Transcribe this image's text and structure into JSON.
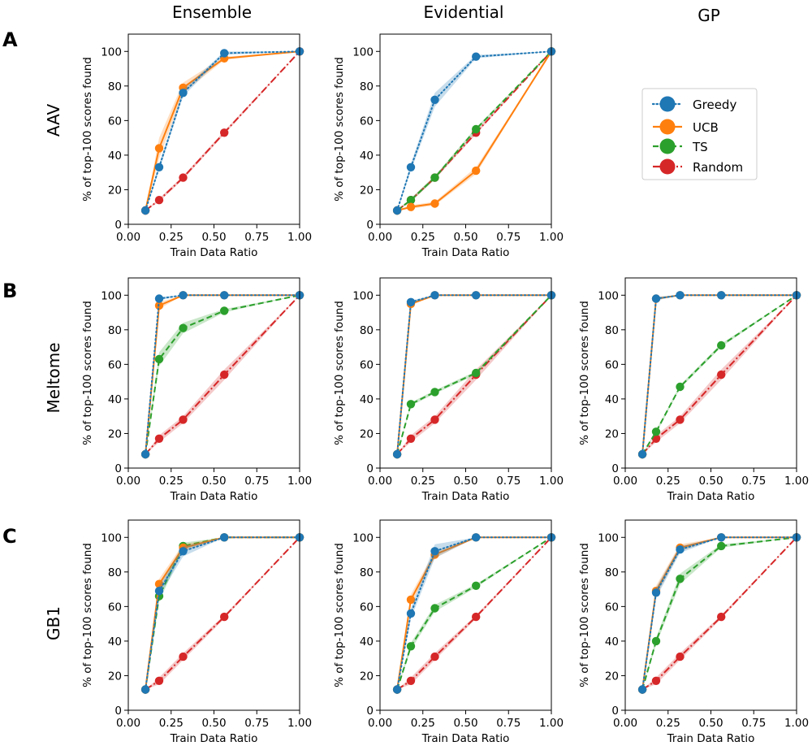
{
  "column_titles": [
    "Ensemble",
    "Evidential",
    "GP"
  ],
  "rows": [
    {
      "letter": "A",
      "label": "AAV"
    },
    {
      "letter": "B",
      "label": "Meltome"
    },
    {
      "letter": "C",
      "label": "GB1"
    }
  ],
  "legend": {
    "position": "top-right (row A, GP column)",
    "entries": [
      {
        "name": "Greedy",
        "series": "greedy"
      },
      {
        "name": "UCB",
        "series": "ucb"
      },
      {
        "name": "TS",
        "series": "ts"
      },
      {
        "name": "Random",
        "series": "random"
      }
    ]
  },
  "colors": {
    "greedy": "#1f77b4",
    "ucb": "#ff7f0e",
    "ts": "#2ca02c",
    "random": "#d62728"
  },
  "chart_data": [
    {
      "type": "line",
      "row": 0,
      "col": 0,
      "title": "Ensemble",
      "row_label": "AAV",
      "xlabel": "Train Data Ratio",
      "ylabel": "% of top-100 scores found",
      "xlim": [
        0.0,
        1.0
      ],
      "ylim": [
        0,
        110
      ],
      "xticks": [
        "0.00",
        "0.25",
        "0.50",
        "0.75",
        "1.00"
      ],
      "yticks": [
        "0",
        "20",
        "40",
        "60",
        "80",
        "100"
      ],
      "x": [
        0.1,
        0.18,
        0.32,
        0.56,
        1.0
      ],
      "series": [
        {
          "name": "Greedy",
          "key": "greedy",
          "values": [
            8,
            33,
            76,
            99,
            100
          ],
          "band": [
            0,
            2,
            2,
            1,
            0
          ]
        },
        {
          "name": "UCB",
          "key": "ucb",
          "values": [
            8,
            44,
            79,
            96,
            100
          ],
          "band": [
            0,
            6,
            3,
            1,
            0
          ]
        },
        {
          "name": "Random",
          "key": "random",
          "values": [
            8,
            14,
            27,
            53,
            100
          ],
          "band": [
            0,
            1,
            1,
            1,
            0
          ]
        }
      ]
    },
    {
      "type": "line",
      "row": 0,
      "col": 1,
      "title": "Evidential",
      "row_label": "AAV",
      "xlabel": "Train Data Ratio",
      "ylabel": "% of top-100 scores found",
      "xlim": [
        0.0,
        1.0
      ],
      "ylim": [
        0,
        110
      ],
      "xticks": [
        "0.00",
        "0.25",
        "0.50",
        "0.75",
        "1.00"
      ],
      "yticks": [
        "0",
        "20",
        "40",
        "60",
        "80",
        "100"
      ],
      "x": [
        0.1,
        0.18,
        0.32,
        0.56,
        1.0
      ],
      "series": [
        {
          "name": "Greedy",
          "key": "greedy",
          "values": [
            8,
            33,
            72,
            97,
            100
          ],
          "band": [
            0,
            2,
            4,
            1,
            0
          ]
        },
        {
          "name": "UCB",
          "key": "ucb",
          "values": [
            8,
            10,
            12,
            31,
            100
          ],
          "band": [
            0,
            1,
            1,
            2,
            0
          ]
        },
        {
          "name": "TS",
          "key": "ts",
          "values": [
            8,
            14,
            27,
            55,
            100
          ],
          "band": [
            0,
            1,
            1,
            1,
            0
          ]
        },
        {
          "name": "Random",
          "key": "random",
          "values": [
            8,
            14,
            27,
            53,
            100
          ],
          "band": [
            0,
            1,
            1,
            1,
            0
          ]
        }
      ]
    },
    {
      "type": "line",
      "row": 1,
      "col": 0,
      "title": "Ensemble",
      "row_label": "Meltome",
      "xlabel": "Train Data Ratio",
      "ylabel": "% of top-100 scores found",
      "xlim": [
        0.0,
        1.0
      ],
      "ylim": [
        0,
        110
      ],
      "xticks": [
        "0.00",
        "0.25",
        "0.50",
        "0.75",
        "1.00"
      ],
      "yticks": [
        "0",
        "20",
        "40",
        "60",
        "80",
        "100"
      ],
      "x": [
        0.1,
        0.18,
        0.32,
        0.56,
        1.0
      ],
      "series": [
        {
          "name": "Greedy",
          "key": "greedy",
          "values": [
            8,
            98,
            100,
            100,
            100
          ],
          "band": [
            0,
            1,
            0,
            0,
            0
          ]
        },
        {
          "name": "UCB",
          "key": "ucb",
          "values": [
            8,
            94,
            100,
            100,
            100
          ],
          "band": [
            0,
            2,
            0,
            0,
            0
          ]
        },
        {
          "name": "TS",
          "key": "ts",
          "values": [
            8,
            63,
            81,
            91,
            100
          ],
          "band": [
            0,
            4,
            3,
            1,
            0
          ]
        },
        {
          "name": "Random",
          "key": "random",
          "values": [
            8,
            17,
            28,
            54,
            100
          ],
          "band": [
            0,
            2,
            2,
            3,
            0
          ]
        }
      ]
    },
    {
      "type": "line",
      "row": 1,
      "col": 1,
      "title": "Evidential",
      "row_label": "Meltome",
      "xlabel": "Train Data Ratio",
      "ylabel": "% of top-100 scores found",
      "xlim": [
        0.0,
        1.0
      ],
      "ylim": [
        0,
        110
      ],
      "xticks": [
        "0.00",
        "0.25",
        "0.50",
        "0.75",
        "1.00"
      ],
      "yticks": [
        "0",
        "20",
        "40",
        "60",
        "80",
        "100"
      ],
      "x": [
        0.1,
        0.18,
        0.32,
        0.56,
        1.0
      ],
      "series": [
        {
          "name": "Greedy",
          "key": "greedy",
          "values": [
            8,
            96,
            100,
            100,
            100
          ],
          "band": [
            0,
            1,
            0,
            0,
            0
          ]
        },
        {
          "name": "UCB",
          "key": "ucb",
          "values": [
            8,
            95,
            100,
            100,
            100
          ],
          "band": [
            0,
            1,
            0,
            0,
            0
          ]
        },
        {
          "name": "TS",
          "key": "ts",
          "values": [
            8,
            37,
            44,
            55,
            100
          ],
          "band": [
            0,
            1,
            1,
            1,
            0
          ]
        },
        {
          "name": "Random",
          "key": "random",
          "values": [
            8,
            17,
            28,
            54,
            100
          ],
          "band": [
            0,
            2,
            2,
            3,
            0
          ]
        }
      ]
    },
    {
      "type": "line",
      "row": 1,
      "col": 2,
      "title": "GP",
      "row_label": "Meltome",
      "xlabel": "Train Data Ratio",
      "ylabel": "% of top-100 scores found",
      "xlim": [
        0.0,
        1.0
      ],
      "ylim": [
        0,
        110
      ],
      "xticks": [
        "0.00",
        "0.25",
        "0.50",
        "0.75",
        "1.00"
      ],
      "yticks": [
        "0",
        "20",
        "40",
        "60",
        "80",
        "100"
      ],
      "x": [
        0.1,
        0.18,
        0.32,
        0.56,
        1.0
      ],
      "series": [
        {
          "name": "Greedy",
          "key": "greedy",
          "values": [
            8,
            98,
            100,
            100,
            100
          ],
          "band": [
            0,
            1,
            0,
            0,
            0
          ]
        },
        {
          "name": "UCB",
          "key": "ucb",
          "values": [
            8,
            98,
            100,
            100,
            100
          ],
          "band": [
            0,
            1,
            0,
            0,
            0
          ]
        },
        {
          "name": "TS",
          "key": "ts",
          "values": [
            8,
            21,
            47,
            71,
            100
          ],
          "band": [
            0,
            1,
            1,
            1,
            0
          ]
        },
        {
          "name": "Random",
          "key": "random",
          "values": [
            8,
            17,
            28,
            54,
            100
          ],
          "band": [
            0,
            2,
            2,
            3,
            0
          ]
        }
      ]
    },
    {
      "type": "line",
      "row": 2,
      "col": 0,
      "title": "Ensemble",
      "row_label": "GB1",
      "xlabel": "Train Data Ratio",
      "ylabel": "% of top-100 scores found",
      "xlim": [
        0.0,
        1.0
      ],
      "ylim": [
        0,
        110
      ],
      "xticks": [
        "0.00",
        "0.25",
        "0.50",
        "0.75",
        "1.00"
      ],
      "yticks": [
        "0",
        "20",
        "40",
        "60",
        "80",
        "100"
      ],
      "x": [
        0.1,
        0.18,
        0.32,
        0.56,
        1.0
      ],
      "series": [
        {
          "name": "Greedy",
          "key": "greedy",
          "values": [
            12,
            69,
            92,
            100,
            100
          ],
          "band": [
            0,
            3,
            3,
            0,
            0
          ]
        },
        {
          "name": "UCB",
          "key": "ucb",
          "values": [
            12,
            73,
            94,
            100,
            100
          ],
          "band": [
            0,
            3,
            2,
            0,
            0
          ]
        },
        {
          "name": "TS",
          "key": "ts",
          "values": [
            12,
            66,
            95,
            100,
            100
          ],
          "band": [
            0,
            3,
            2,
            0,
            0
          ]
        },
        {
          "name": "Random",
          "key": "random",
          "values": [
            12,
            17,
            31,
            54,
            100
          ],
          "band": [
            0,
            2,
            2,
            1,
            0
          ]
        }
      ]
    },
    {
      "type": "line",
      "row": 2,
      "col": 1,
      "title": "Evidential",
      "row_label": "GB1",
      "xlabel": "Train Data Ratio",
      "ylabel": "% of top-100 scores found",
      "xlim": [
        0.0,
        1.0
      ],
      "ylim": [
        0,
        110
      ],
      "xticks": [
        "0.00",
        "0.25",
        "0.50",
        "0.75",
        "1.00"
      ],
      "yticks": [
        "0",
        "20",
        "40",
        "60",
        "80",
        "100"
      ],
      "x": [
        0.1,
        0.18,
        0.32,
        0.56,
        1.0
      ],
      "series": [
        {
          "name": "Greedy",
          "key": "greedy",
          "values": [
            12,
            56,
            92,
            100,
            100
          ],
          "band": [
            0,
            3,
            4,
            0,
            0
          ]
        },
        {
          "name": "UCB",
          "key": "ucb",
          "values": [
            12,
            64,
            90,
            100,
            100
          ],
          "band": [
            0,
            3,
            2,
            0,
            0
          ]
        },
        {
          "name": "TS",
          "key": "ts",
          "values": [
            12,
            37,
            59,
            72,
            100
          ],
          "band": [
            0,
            2,
            2,
            1,
            0
          ]
        },
        {
          "name": "Random",
          "key": "random",
          "values": [
            12,
            17,
            31,
            54,
            100
          ],
          "band": [
            0,
            2,
            2,
            1,
            0
          ]
        }
      ]
    },
    {
      "type": "line",
      "row": 2,
      "col": 2,
      "title": "GP",
      "row_label": "GB1",
      "xlabel": "Train Data Ratio",
      "ylabel": "% of top-100 scores found",
      "xlim": [
        0.0,
        1.0
      ],
      "ylim": [
        0,
        110
      ],
      "xticks": [
        "0.00",
        "0.25",
        "0.50",
        "0.75",
        "1.00"
      ],
      "yticks": [
        "0",
        "20",
        "40",
        "60",
        "80",
        "100"
      ],
      "x": [
        0.1,
        0.18,
        0.32,
        0.56,
        1.0
      ],
      "series": [
        {
          "name": "Greedy",
          "key": "greedy",
          "values": [
            12,
            68,
            93,
            100,
            100
          ],
          "band": [
            0,
            3,
            2,
            0,
            0
          ]
        },
        {
          "name": "UCB",
          "key": "ucb",
          "values": [
            12,
            69,
            94,
            100,
            100
          ],
          "band": [
            0,
            3,
            2,
            0,
            0
          ]
        },
        {
          "name": "TS",
          "key": "ts",
          "values": [
            12,
            40,
            76,
            95,
            100
          ],
          "band": [
            0,
            2,
            3,
            1,
            0
          ]
        },
        {
          "name": "Random",
          "key": "random",
          "values": [
            12,
            17,
            31,
            54,
            100
          ],
          "band": [
            0,
            2,
            2,
            1,
            0
          ]
        }
      ]
    }
  ]
}
